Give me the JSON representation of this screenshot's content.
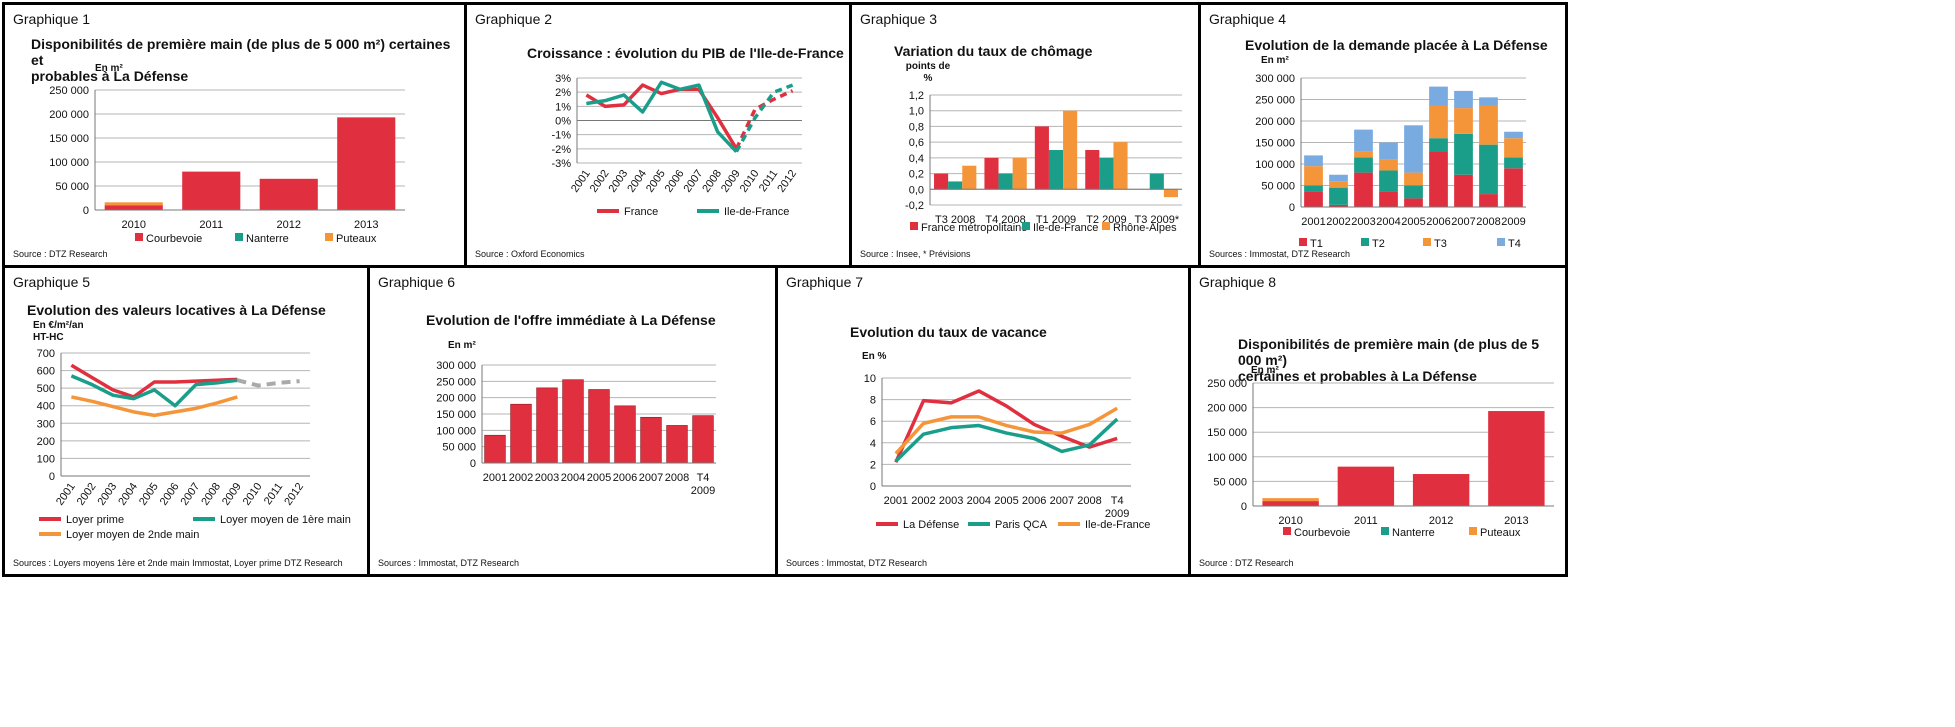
{
  "panels": [
    {
      "label": "Graphique 1",
      "title_lines": [
        "Disponibilités de première main (de plus de 5 000 m²) certaines et",
        "probables à La Défense"
      ],
      "source": "Source : DTZ Research"
    },
    {
      "label": "Graphique 2",
      "title_lines": [
        "Croissance : évolution du PIB de l'Ile-de-France"
      ],
      "source": "Source : Oxford Economics"
    },
    {
      "label": "Graphique 3",
      "title_lines": [
        "Variation du taux de chômage"
      ],
      "source": "Source : Insee, * Prévisions"
    },
    {
      "label": "Graphique 4",
      "title_lines": [
        "Evolution de la demande placée à La Défense"
      ],
      "source": "Sources : Immostat, DTZ Research"
    },
    {
      "label": "Graphique 5",
      "title_lines": [
        "Evolution des valeurs locatives à La Défense"
      ],
      "source": "Sources : Loyers moyens 1ère et 2nde main Immostat, Loyer prime DTZ Research"
    },
    {
      "label": "Graphique 6",
      "title_lines": [
        "Evolution de l'offre immédiate à La Défense"
      ],
      "source": "Sources : Immostat, DTZ Research"
    },
    {
      "label": "Graphique 7",
      "title_lines": [
        "Evolution du taux de vacance"
      ],
      "source": "Sources : Immostat, DTZ Research"
    },
    {
      "label": "Graphique 8",
      "title_lines": [
        "Disponibilités de première main (de plus de 5 000 m²)",
        "certaines et probables à La Défense"
      ],
      "source": "Source : DTZ Research"
    }
  ],
  "chart_data": [
    {
      "type": "bar",
      "stacked": true,
      "ylabel": "En m²",
      "categories": [
        "2010",
        "2011",
        "2012",
        "2013"
      ],
      "yticks": [
        "0",
        "50 000",
        "100 000",
        "150 000",
        "200 000",
        "250 000"
      ],
      "ylim": [
        0,
        250000
      ],
      "series": [
        {
          "name": "Courbevoie",
          "color": "#e03040",
          "values": [
            10000,
            80000,
            65000,
            193000
          ]
        },
        {
          "name": "Nanterre",
          "color": "#1a9e8a",
          "values": [
            0,
            0,
            0,
            0
          ]
        },
        {
          "name": "Puteaux",
          "color": "#f5953a",
          "values": [
            6000,
            0,
            0,
            0
          ]
        }
      ]
    },
    {
      "type": "line",
      "categories": [
        "2001",
        "2002",
        "2003",
        "2004",
        "2005",
        "2006",
        "2007",
        "2008",
        "2009",
        "2010",
        "2011",
        "2012"
      ],
      "yticks": [
        "-3%",
        "-2%",
        "-1%",
        "0%",
        "1%",
        "2%",
        "3%"
      ],
      "ylim": [
        -3,
        3
      ],
      "forecast_from": 9,
      "series": [
        {
          "name": "France",
          "color": "#e03040",
          "values": [
            1.8,
            1.0,
            1.1,
            2.5,
            1.9,
            2.2,
            2.2,
            0.2,
            -2.0,
            0.8,
            1.5,
            2.1
          ]
        },
        {
          "name": "Ile-de-France",
          "color": "#1a9e8a",
          "values": [
            1.2,
            1.4,
            1.8,
            0.6,
            2.7,
            2.2,
            2.5,
            -0.8,
            -2.2,
            0.2,
            2.0,
            2.5
          ]
        }
      ]
    },
    {
      "type": "bar",
      "ylabel": "points de %",
      "categories": [
        "T3 2008",
        "T4 2008",
        "T1 2009",
        "T2 2009",
        "T3 2009*"
      ],
      "yticks": [
        "-0,2",
        "0,0",
        "0,2",
        "0,4",
        "0,6",
        "0,8",
        "1,0",
        "1,2"
      ],
      "ylim": [
        -0.2,
        1.2
      ],
      "series": [
        {
          "name": "France métropolitaine",
          "color": "#e03040",
          "values": [
            0.2,
            0.4,
            0.8,
            0.5,
            0
          ]
        },
        {
          "name": "Ile-de-France",
          "color": "#1a9e8a",
          "values": [
            0.1,
            0.2,
            0.5,
            0.4,
            0.2
          ]
        },
        {
          "name": "Rhône-Alpes",
          "color": "#f5953a",
          "values": [
            0.3,
            0.4,
            1.0,
            0.6,
            -0.1
          ]
        }
      ]
    },
    {
      "type": "bar",
      "stacked": true,
      "ylabel": "En m²",
      "categories": [
        "2001",
        "2002",
        "2003",
        "2004",
        "2005",
        "2006",
        "2007",
        "2008",
        "2009"
      ],
      "yticks": [
        "0",
        "50 000",
        "100 000",
        "150 000",
        "200 000",
        "250 000",
        "300 000"
      ],
      "ylim": [
        0,
        300000
      ],
      "series": [
        {
          "name": "T1",
          "color": "#e03040",
          "values": [
            35000,
            5000,
            80000,
            35000,
            20000,
            130000,
            75000,
            30000,
            90000
          ]
        },
        {
          "name": "T2",
          "color": "#1a9e8a",
          "values": [
            15000,
            40000,
            35000,
            50000,
            30000,
            30000,
            95000,
            115000,
            25000
          ]
        },
        {
          "name": "T3",
          "color": "#f5953a",
          "values": [
            45000,
            15000,
            15000,
            25000,
            30000,
            75000,
            60000,
            90000,
            45000
          ]
        },
        {
          "name": "T4",
          "color": "#7aabe0",
          "values": [
            25000,
            15000,
            50000,
            40000,
            110000,
            45000,
            40000,
            20000,
            15000
          ]
        }
      ]
    },
    {
      "type": "line",
      "ylabel": "En €/m²/an HT-HC",
      "categories": [
        "2001",
        "2002",
        "2003",
        "2004",
        "2005",
        "2006",
        "2007",
        "2008",
        "2009",
        "2010",
        "2011",
        "2012"
      ],
      "yticks": [
        "0",
        "100",
        "200",
        "300",
        "400",
        "500",
        "600",
        "700"
      ],
      "ylim": [
        0,
        700
      ],
      "series": [
        {
          "name": "Loyer prime",
          "color": "#e03040",
          "values": [
            630,
            560,
            490,
            450,
            535,
            535,
            540,
            545,
            550,
            null,
            null,
            null
          ]
        },
        {
          "name": "Loyer moyen de 1ère main",
          "color": "#1a9e8a",
          "values": [
            570,
            520,
            460,
            440,
            490,
            400,
            520,
            530,
            545,
            null,
            null,
            null
          ]
        },
        {
          "name": "Loyer moyen de 2nde main",
          "color": "#f5953a",
          "values": [
            450,
            425,
            395,
            365,
            345,
            365,
            385,
            415,
            450,
            null,
            null,
            null
          ]
        },
        {
          "name": "",
          "color": "#aaaaaa",
          "values": [
            null,
            null,
            null,
            null,
            null,
            null,
            null,
            null,
            545,
            515,
            530,
            540
          ],
          "dashed": true
        }
      ]
    },
    {
      "type": "bar",
      "ylabel": "En m²",
      "categories": [
        "2001",
        "2002",
        "2003",
        "2004",
        "2005",
        "2006",
        "2007",
        "2008",
        "T4 2009"
      ],
      "yticks": [
        "0",
        "50 000",
        "100 000",
        "150 000",
        "200 000",
        "250 000",
        "300 000"
      ],
      "ylim": [
        0,
        300000
      ],
      "series": [
        {
          "name": "",
          "color": "#e03040",
          "values": [
            85000,
            180000,
            230000,
            255000,
            225000,
            175000,
            140000,
            115000,
            145000
          ]
        }
      ]
    },
    {
      "type": "line",
      "ylabel": "En %",
      "categories": [
        "2001",
        "2002",
        "2003",
        "2004",
        "2005",
        "2006",
        "2007",
        "2008",
        "T4 2009"
      ],
      "yticks": [
        "0",
        "2",
        "4",
        "6",
        "8",
        "10"
      ],
      "ylim": [
        0,
        10
      ],
      "series": [
        {
          "name": "La Défense",
          "color": "#e03040",
          "values": [
            2.2,
            7.9,
            7.7,
            8.8,
            7.4,
            5.7,
            4.6,
            3.6,
            4.4
          ]
        },
        {
          "name": "Paris QCA",
          "color": "#1a9e8a",
          "values": [
            2.3,
            4.8,
            5.4,
            5.6,
            4.9,
            4.4,
            3.2,
            3.8,
            6.2
          ]
        },
        {
          "name": "Ile-de-France",
          "color": "#f5953a",
          "values": [
            3.0,
            5.8,
            6.4,
            6.4,
            5.6,
            5.0,
            4.9,
            5.7,
            7.2
          ]
        }
      ]
    },
    {
      "type": "bar",
      "stacked": true,
      "ylabel": "En m²",
      "categories": [
        "2010",
        "2011",
        "2012",
        "2013"
      ],
      "yticks": [
        "0",
        "50 000",
        "100 000",
        "150 000",
        "200 000",
        "250 000"
      ],
      "ylim": [
        0,
        250000
      ],
      "series": [
        {
          "name": "Courbevoie",
          "color": "#e03040",
          "values": [
            10000,
            80000,
            65000,
            193000
          ]
        },
        {
          "name": "Nanterre",
          "color": "#1a9e8a",
          "values": [
            0,
            0,
            0,
            0
          ]
        },
        {
          "name": "Puteaux",
          "color": "#f5953a",
          "values": [
            6000,
            0,
            0,
            0
          ]
        }
      ]
    }
  ]
}
